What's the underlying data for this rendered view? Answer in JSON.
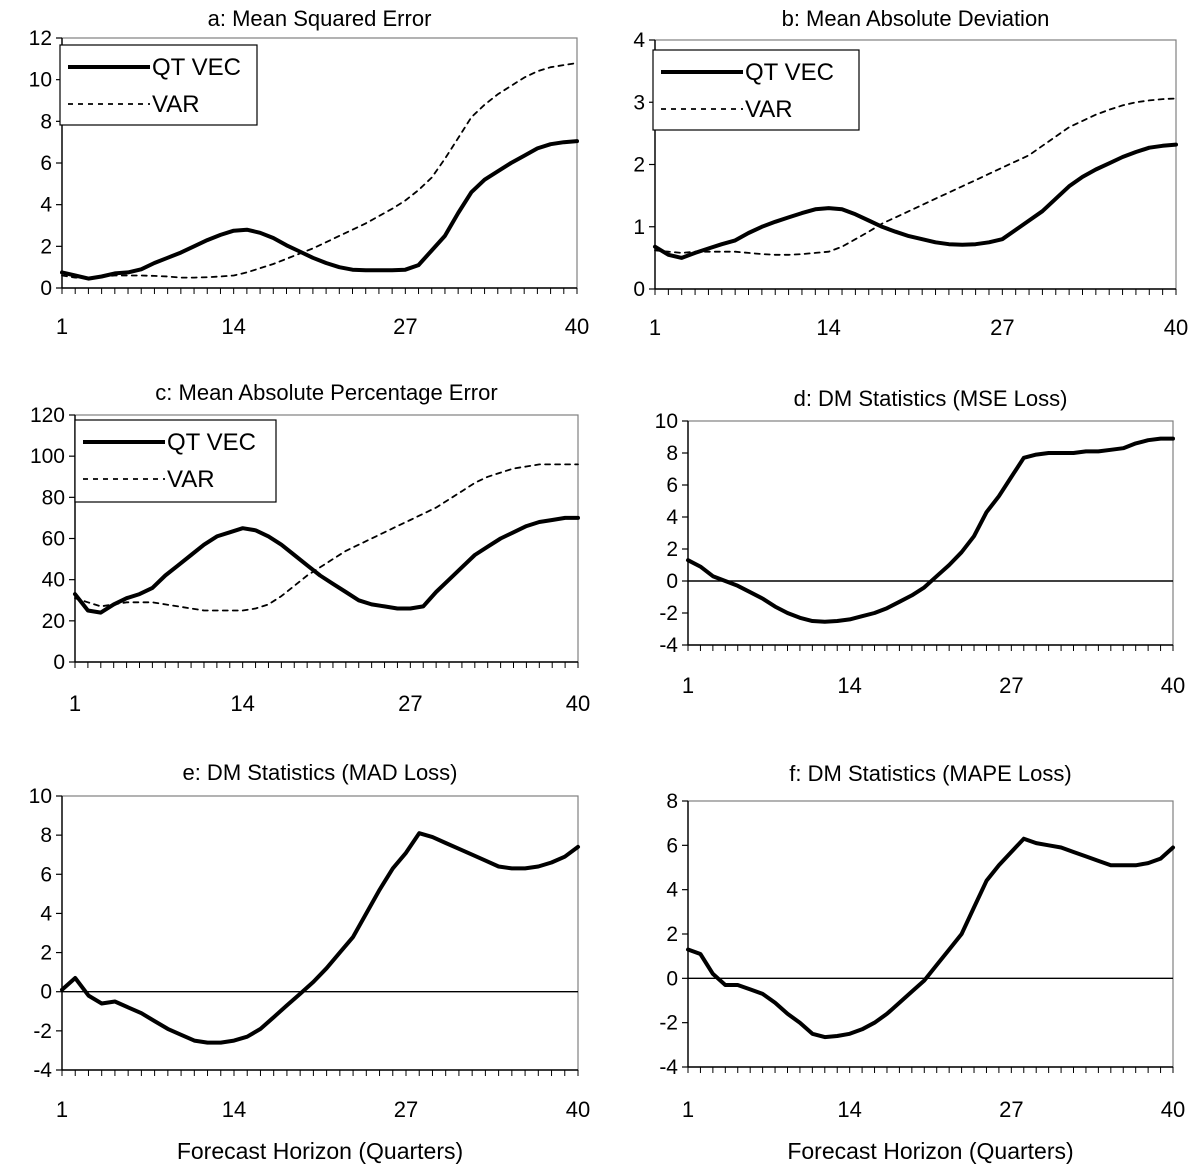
{
  "chart_data": [
    {
      "type": "line",
      "title": "a: Mean Squared Error",
      "xlabel": "",
      "ylabel": "",
      "ylim": [
        0,
        12
      ],
      "xlim": [
        1,
        40
      ],
      "yticks": [
        0,
        2,
        4,
        6,
        8,
        10,
        12
      ],
      "xticks": [
        1,
        14,
        27,
        40
      ],
      "legend": "top-left",
      "grid": false,
      "zero_line": false,
      "x": [
        1,
        2,
        3,
        4,
        5,
        6,
        7,
        8,
        9,
        10,
        11,
        12,
        13,
        14,
        15,
        16,
        17,
        18,
        19,
        20,
        21,
        22,
        23,
        24,
        25,
        26,
        27,
        28,
        29,
        30,
        31,
        32,
        33,
        34,
        35,
        36,
        37,
        38,
        39,
        40
      ],
      "series": [
        {
          "name": "QT VEC",
          "style": "solid",
          "values": [
            0.75,
            0.6,
            0.45,
            0.55,
            0.7,
            0.75,
            0.9,
            1.2,
            1.45,
            1.7,
            2.0,
            2.3,
            2.55,
            2.75,
            2.8,
            2.65,
            2.4,
            2.05,
            1.75,
            1.45,
            1.2,
            1.0,
            0.88,
            0.85,
            0.85,
            0.85,
            0.88,
            1.1,
            1.8,
            2.5,
            3.6,
            4.6,
            5.2,
            5.6,
            6.0,
            6.35,
            6.7,
            6.9,
            7.0,
            7.05
          ]
        },
        {
          "name": "VAR",
          "style": "dashed",
          "values": [
            0.6,
            0.5,
            0.5,
            0.55,
            0.6,
            0.6,
            0.6,
            0.58,
            0.55,
            0.5,
            0.5,
            0.52,
            0.55,
            0.6,
            0.75,
            0.95,
            1.15,
            1.4,
            1.65,
            1.9,
            2.2,
            2.5,
            2.8,
            3.1,
            3.45,
            3.8,
            4.2,
            4.7,
            5.3,
            6.2,
            7.2,
            8.2,
            8.8,
            9.3,
            9.7,
            10.1,
            10.4,
            10.6,
            10.7,
            10.8
          ]
        }
      ]
    },
    {
      "type": "line",
      "title": "b: Mean Absolute Deviation",
      "xlabel": "",
      "ylabel": "",
      "ylim": [
        0,
        4
      ],
      "xlim": [
        1,
        40
      ],
      "yticks": [
        0,
        1,
        2,
        3,
        4
      ],
      "xticks": [
        1,
        14,
        27,
        40
      ],
      "legend": "top-left",
      "grid": false,
      "zero_line": false,
      "x": [
        1,
        2,
        3,
        4,
        5,
        6,
        7,
        8,
        9,
        10,
        11,
        12,
        13,
        14,
        15,
        16,
        17,
        18,
        19,
        20,
        21,
        22,
        23,
        24,
        25,
        26,
        27,
        28,
        29,
        30,
        31,
        32,
        33,
        34,
        35,
        36,
        37,
        38,
        39,
        40
      ],
      "series": [
        {
          "name": "QT VEC",
          "style": "solid",
          "values": [
            0.68,
            0.55,
            0.5,
            0.58,
            0.65,
            0.72,
            0.78,
            0.9,
            1.0,
            1.08,
            1.15,
            1.22,
            1.28,
            1.3,
            1.28,
            1.2,
            1.1,
            1.0,
            0.92,
            0.85,
            0.8,
            0.75,
            0.72,
            0.71,
            0.72,
            0.75,
            0.8,
            0.95,
            1.1,
            1.25,
            1.45,
            1.65,
            1.8,
            1.92,
            2.02,
            2.12,
            2.2,
            2.27,
            2.3,
            2.32
          ]
        },
        {
          "name": "VAR",
          "style": "dashed",
          "values": [
            0.62,
            0.6,
            0.58,
            0.6,
            0.6,
            0.6,
            0.6,
            0.58,
            0.56,
            0.55,
            0.55,
            0.56,
            0.58,
            0.6,
            0.68,
            0.8,
            0.92,
            1.05,
            1.15,
            1.25,
            1.35,
            1.45,
            1.55,
            1.65,
            1.75,
            1.85,
            1.95,
            2.05,
            2.15,
            2.3,
            2.45,
            2.6,
            2.7,
            2.8,
            2.88,
            2.95,
            3.0,
            3.03,
            3.05,
            3.06
          ]
        }
      ]
    },
    {
      "type": "line",
      "title": "c: Mean Absolute Percentage Error",
      "xlabel": "",
      "ylabel": "",
      "ylim": [
        0,
        120
      ],
      "xlim": [
        1,
        40
      ],
      "yticks": [
        0,
        20,
        40,
        60,
        80,
        100,
        120
      ],
      "xticks": [
        1,
        14,
        27,
        40
      ],
      "legend": "top-left",
      "grid": false,
      "zero_line": false,
      "x": [
        1,
        2,
        3,
        4,
        5,
        6,
        7,
        8,
        9,
        10,
        11,
        12,
        13,
        14,
        15,
        16,
        17,
        18,
        19,
        20,
        21,
        22,
        23,
        24,
        25,
        26,
        27,
        28,
        29,
        30,
        31,
        32,
        33,
        34,
        35,
        36,
        37,
        38,
        39,
        40
      ],
      "series": [
        {
          "name": "QT VEC",
          "style": "solid",
          "values": [
            33,
            25,
            24,
            28,
            31,
            33,
            36,
            42,
            47,
            52,
            57,
            61,
            63,
            65,
            64,
            61,
            57,
            52,
            47,
            42,
            38,
            34,
            30,
            28,
            27,
            26,
            26,
            27,
            34,
            40,
            46,
            52,
            56,
            60,
            63,
            66,
            68,
            69,
            70,
            70
          ]
        },
        {
          "name": "VAR",
          "style": "dashed",
          "values": [
            31,
            29,
            27,
            28,
            29,
            29,
            29,
            28,
            27,
            26,
            25,
            25,
            25,
            25,
            26,
            28,
            32,
            37,
            42,
            46,
            50,
            54,
            57,
            60,
            63,
            66,
            69,
            72,
            75,
            79,
            83,
            87,
            90,
            92,
            94,
            95,
            96,
            96,
            96,
            96
          ]
        }
      ]
    },
    {
      "type": "line",
      "title": "d: DM Statistics (MSE Loss)",
      "xlabel": "",
      "ylabel": "",
      "ylim": [
        -4,
        10
      ],
      "xlim": [
        1,
        40
      ],
      "yticks": [
        -4,
        -2,
        0,
        2,
        4,
        6,
        8,
        10
      ],
      "xticks": [
        1,
        14,
        27,
        40
      ],
      "legend": "none",
      "grid": false,
      "zero_line": true,
      "x": [
        1,
        2,
        3,
        4,
        5,
        6,
        7,
        8,
        9,
        10,
        11,
        12,
        13,
        14,
        15,
        16,
        17,
        18,
        19,
        20,
        21,
        22,
        23,
        24,
        25,
        26,
        27,
        28,
        29,
        30,
        31,
        32,
        33,
        34,
        35,
        36,
        37,
        38,
        39,
        40
      ],
      "series": [
        {
          "values": [
            1.3,
            0.9,
            0.3,
            0.0,
            -0.3,
            -0.7,
            -1.1,
            -1.6,
            -2.0,
            -2.3,
            -2.5,
            -2.55,
            -2.5,
            -2.4,
            -2.2,
            -2.0,
            -1.7,
            -1.3,
            -0.9,
            -0.4,
            0.3,
            1.0,
            1.8,
            2.8,
            4.3,
            5.3,
            6.5,
            7.7,
            7.9,
            8.0,
            8.0,
            8.0,
            8.1,
            8.1,
            8.2,
            8.3,
            8.6,
            8.8,
            8.9,
            8.9
          ]
        }
      ]
    },
    {
      "type": "line",
      "title": "e: DM Statistics (MAD Loss)",
      "xlabel": "Forecast Horizon (Quarters)",
      "ylabel": "",
      "ylim": [
        -4,
        10
      ],
      "xlim": [
        1,
        40
      ],
      "yticks": [
        -4,
        -2,
        0,
        2,
        4,
        6,
        8,
        10
      ],
      "xticks": [
        1,
        14,
        27,
        40
      ],
      "legend": "none",
      "grid": false,
      "zero_line": true,
      "x": [
        1,
        2,
        3,
        4,
        5,
        6,
        7,
        8,
        9,
        10,
        11,
        12,
        13,
        14,
        15,
        16,
        17,
        18,
        19,
        20,
        21,
        22,
        23,
        24,
        25,
        26,
        27,
        28,
        29,
        30,
        31,
        32,
        33,
        34,
        35,
        36,
        37,
        38,
        39,
        40
      ],
      "series": [
        {
          "values": [
            0.1,
            0.7,
            -0.2,
            -0.6,
            -0.5,
            -0.8,
            -1.1,
            -1.5,
            -1.9,
            -2.2,
            -2.5,
            -2.6,
            -2.6,
            -2.5,
            -2.3,
            -1.9,
            -1.3,
            -0.7,
            -0.1,
            0.5,
            1.2,
            2.0,
            2.8,
            4.0,
            5.2,
            6.3,
            7.1,
            8.1,
            7.9,
            7.6,
            7.3,
            7.0,
            6.7,
            6.4,
            6.3,
            6.3,
            6.4,
            6.6,
            6.9,
            7.4
          ]
        }
      ]
    },
    {
      "type": "line",
      "title": "f: DM Statistics (MAPE Loss)",
      "xlabel": "Forecast Horizon (Quarters)",
      "ylabel": "",
      "ylim": [
        -4,
        8
      ],
      "xlim": [
        1,
        40
      ],
      "yticks": [
        -4,
        -2,
        0,
        2,
        4,
        6,
        8
      ],
      "xticks": [
        1,
        14,
        27,
        40
      ],
      "legend": "none",
      "grid": false,
      "zero_line": true,
      "x": [
        1,
        2,
        3,
        4,
        5,
        6,
        7,
        8,
        9,
        10,
        11,
        12,
        13,
        14,
        15,
        16,
        17,
        18,
        19,
        20,
        21,
        22,
        23,
        24,
        25,
        26,
        27,
        28,
        29,
        30,
        31,
        32,
        33,
        34,
        35,
        36,
        37,
        38,
        39,
        40
      ],
      "series": [
        {
          "values": [
            1.3,
            1.1,
            0.2,
            -0.3,
            -0.3,
            -0.5,
            -0.7,
            -1.1,
            -1.6,
            -2.0,
            -2.5,
            -2.65,
            -2.6,
            -2.5,
            -2.3,
            -2.0,
            -1.6,
            -1.1,
            -0.6,
            -0.1,
            0.6,
            1.3,
            2.0,
            3.2,
            4.4,
            5.1,
            5.7,
            6.3,
            6.1,
            6.0,
            5.9,
            5.7,
            5.5,
            5.3,
            5.1,
            5.1,
            5.1,
            5.2,
            5.4,
            5.9
          ]
        }
      ]
    }
  ]
}
